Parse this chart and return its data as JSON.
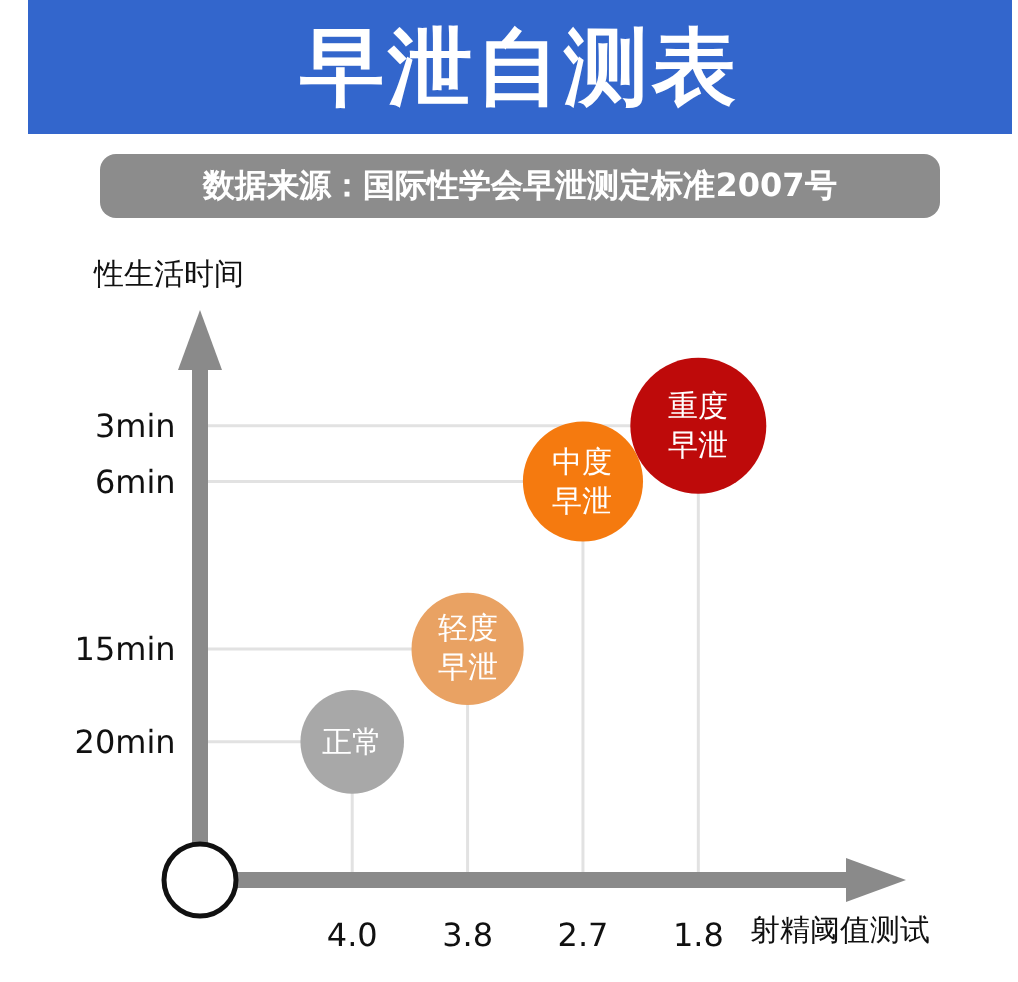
{
  "chart_data": {
    "type": "bubble",
    "title": "早泄自测表",
    "subtitle": "数据来源：国际性学会早泄测定标准2007号",
    "xlabel": "射精阈值测试",
    "ylabel": "性生活时间",
    "categories": [
      "4.0",
      "3.8",
      "2.7",
      "1.8"
    ],
    "values": [
      20,
      15,
      6,
      3
    ],
    "sizes": [
      0.58,
      0.68,
      0.78,
      1
    ],
    "colors": [
      "#a8a8a8",
      "#e9a263",
      "#f57a0f",
      "#be0a0a"
    ],
    "marker": "circle",
    "grid": true,
    "ylim": [
      27,
      0
    ],
    "yticks": [
      {
        "value": 3,
        "label": "3min"
      },
      {
        "value": 6,
        "label": "6min"
      },
      {
        "value": 15,
        "label": "15min"
      },
      {
        "value": 20,
        "label": "20min"
      }
    ],
    "annotations": [
      {
        "text": "正常",
        "x": "4.0",
        "y": 20
      },
      {
        "text": "轻度早泄",
        "x": "3.8",
        "y": 15
      },
      {
        "text": "中度早泄",
        "x": "2.7",
        "y": 6
      },
      {
        "text": "重度早泄",
        "x": "1.8",
        "y": 3
      }
    ]
  }
}
